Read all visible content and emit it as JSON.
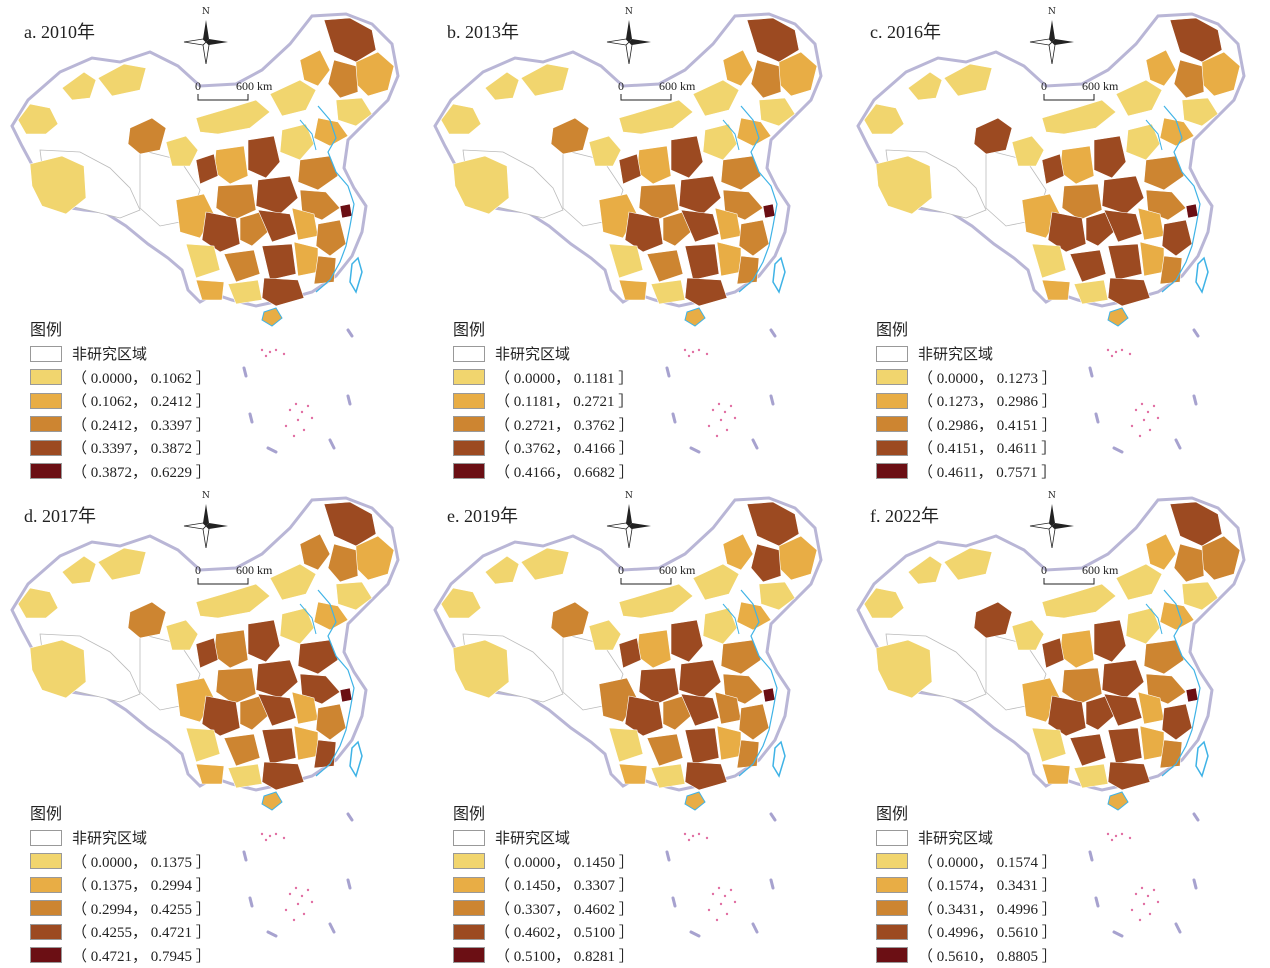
{
  "legend_title": "图例",
  "non_study_label": "非研究区域",
  "north_label": "N",
  "scale_zero": "0",
  "scale_label": "600 km",
  "colors": [
    "#f1d56e",
    "#e8ad45",
    "#cd8531",
    "#9c4a21",
    "#6b0f14"
  ],
  "non_study_color": "#ffffff",
  "boundary_color": "#b9b6d6",
  "river_color": "#3fb3e6",
  "panels": [
    {
      "title": "a. 2010年",
      "classes": [
        "（ 0.0000， 0.1062 ］",
        "（ 0.1062， 0.2412 ］",
        "（ 0.2412， 0.3397 ］",
        "（ 0.3397， 0.3872 ］",
        "（ 0.3872， 0.6229 ］"
      ]
    },
    {
      "title": "b. 2013年",
      "classes": [
        "（ 0.0000， 0.1181 ］",
        "（ 0.1181， 0.2721 ］",
        "（ 0.2721， 0.3762 ］",
        "（ 0.3762， 0.4166 ］",
        "（ 0.4166， 0.6682 ］"
      ]
    },
    {
      "title": "c. 2016年",
      "classes": [
        "（ 0.0000， 0.1273 ］",
        "（ 0.1273， 0.2986 ］",
        "（ 0.2986， 0.4151 ］",
        "（ 0.4151， 0.4611 ］",
        "（ 0.4611， 0.7571 ］"
      ]
    },
    {
      "title": "d. 2017年",
      "classes": [
        "（ 0.0000， 0.1375 ］",
        "（ 0.1375， 0.2994 ］",
        "（ 0.2994， 0.4255 ］",
        "（ 0.4255， 0.4721 ］",
        "（ 0.4721， 0.7945 ］"
      ]
    },
    {
      "title": "e. 2019年",
      "classes": [
        "（ 0.0000， 0.1450 ］",
        "（ 0.1450， 0.3307 ］",
        "（ 0.3307， 0.4602 ］",
        "（ 0.4602， 0.5100 ］",
        "（ 0.5100， 0.8281 ］"
      ]
    },
    {
      "title": "f. 2022年",
      "classes": [
        "（ 0.0000， 0.1574 ］",
        "（ 0.1574， 0.3431 ］",
        "（ 0.3431， 0.4996 ］",
        "（ 0.4996， 0.5610 ］",
        "（ 0.5610， 0.8805 ］"
      ]
    }
  ]
}
